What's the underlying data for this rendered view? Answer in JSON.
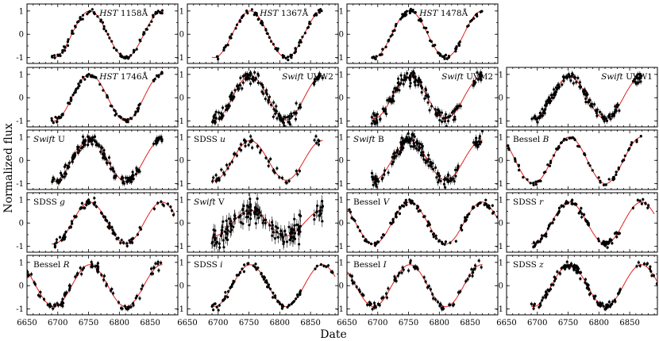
{
  "chart_data": {
    "type": "scatter",
    "xlabel": "Date",
    "ylabel": "Normalized flux",
    "xlim": [
      6650,
      6895
    ],
    "ylim": [
      -1.25,
      1.3
    ],
    "xticks": [
      6650,
      6700,
      6750,
      6800,
      6850
    ],
    "yticks": [
      -1,
      0,
      1
    ],
    "grid": false,
    "series_style": {
      "points": "black filled circles with error bars",
      "model": "red line"
    },
    "colors": {
      "points": "#000000",
      "model": "#e0201c"
    },
    "period_days": 117,
    "peak_date": 6752,
    "panels": [
      {
        "row": 0,
        "col": 0,
        "label_italic": "HST",
        "label_plain": " 1158Å",
        "x_start": 6690,
        "x_end": 6870,
        "noise": 0.06,
        "errorbar": 0.06,
        "n_points": 90,
        "offset_days": 0,
        "amplitude": 1.0
      },
      {
        "row": 0,
        "col": 1,
        "label_italic": "HST",
        "label_plain": " 1367Å",
        "x_start": 6690,
        "x_end": 6870,
        "noise": 0.06,
        "errorbar": 0.06,
        "n_points": 90,
        "offset_days": 0,
        "amplitude": 1.0
      },
      {
        "row": 0,
        "col": 2,
        "label_italic": "HST",
        "label_plain": " 1478Å",
        "x_start": 6690,
        "x_end": 6870,
        "noise": 0.06,
        "errorbar": 0.06,
        "n_points": 90,
        "offset_days": 0,
        "amplitude": 1.0
      },
      {
        "row": 1,
        "col": 0,
        "label_italic": "HST",
        "label_plain": " 1746Å",
        "x_start": 6690,
        "x_end": 6870,
        "noise": 0.06,
        "errorbar": 0.06,
        "n_points": 90,
        "offset_days": 0,
        "amplitude": 1.0
      },
      {
        "row": 1,
        "col": 1,
        "label_italic": "Swift",
        "label_plain": " UVW2",
        "x_start": 6690,
        "x_end": 6870,
        "noise": 0.12,
        "errorbar": 0.12,
        "n_points": 150,
        "offset_days": 0,
        "amplitude": 0.95
      },
      {
        "row": 1,
        "col": 2,
        "label_italic": "Swift",
        "label_plain": " UVM2",
        "x_start": 6690,
        "x_end": 6870,
        "noise": 0.14,
        "errorbar": 0.14,
        "n_points": 150,
        "offset_days": 0,
        "amplitude": 0.9
      },
      {
        "row": 1,
        "col": 3,
        "label_italic": "Swift",
        "label_plain": " UVW1",
        "x_start": 6690,
        "x_end": 6870,
        "noise": 0.12,
        "errorbar": 0.12,
        "n_points": 140,
        "offset_days": 0,
        "amplitude": 0.9
      },
      {
        "row": 2,
        "col": 0,
        "label_italic": "Swift",
        "label_plain": " U",
        "x_start": 6690,
        "x_end": 6870,
        "noise": 0.12,
        "errorbar": 0.12,
        "n_points": 150,
        "offset_days": 0,
        "amplitude": 0.9
      },
      {
        "row": 2,
        "col": 1,
        "label_italic": "",
        "label_plain": "SDSS u",
        "x_start": 6690,
        "x_end": 6870,
        "noise": 0.12,
        "errorbar": 0.1,
        "n_points": 60,
        "offset_days": 0,
        "amplitude": 0.85
      },
      {
        "row": 2,
        "col": 2,
        "label_italic": "Swift",
        "label_plain": " B",
        "x_start": 6690,
        "x_end": 6870,
        "noise": 0.15,
        "errorbar": 0.15,
        "n_points": 150,
        "offset_days": 0,
        "amplitude": 0.85
      },
      {
        "row": 2,
        "col": 3,
        "label_italic": "",
        "label_plain": "Bessel B",
        "x_start": 6650,
        "x_end": 6870,
        "noise": 0.06,
        "errorbar": 0.05,
        "n_points": 80,
        "offset_days": 0,
        "amplitude": 1.0
      },
      {
        "row": 3,
        "col": 0,
        "label_italic": "",
        "label_plain": "SDSS g",
        "x_start": 6690,
        "x_end": 6890,
        "noise": 0.08,
        "errorbar": 0.08,
        "n_points": 90,
        "offset_days": 0,
        "amplitude": 0.9
      },
      {
        "row": 3,
        "col": 1,
        "label_italic": "Swift",
        "label_plain": " V",
        "x_start": 6690,
        "x_end": 6870,
        "noise": 0.25,
        "errorbar": 0.25,
        "n_points": 150,
        "offset_days": 0,
        "amplitude": 0.55
      },
      {
        "row": 3,
        "col": 2,
        "label_italic": "",
        "label_plain": "Bessel V",
        "x_start": 6650,
        "x_end": 6895,
        "noise": 0.08,
        "errorbar": 0.07,
        "n_points": 110,
        "offset_days": 0,
        "amplitude": 0.9
      },
      {
        "row": 3,
        "col": 3,
        "label_italic": "",
        "label_plain": "SDSS r",
        "x_start": 6690,
        "x_end": 6890,
        "noise": 0.08,
        "errorbar": 0.08,
        "n_points": 90,
        "offset_days": 0,
        "amplitude": 0.9
      },
      {
        "row": 4,
        "col": 0,
        "label_italic": "",
        "label_plain": "Bessel R",
        "x_start": 6650,
        "x_end": 6870,
        "noise": 0.1,
        "errorbar": 0.1,
        "n_points": 90,
        "offset_days": 0,
        "amplitude": 0.9
      },
      {
        "row": 4,
        "col": 1,
        "label_italic": "",
        "label_plain": "SDSS i",
        "x_start": 6690,
        "x_end": 6890,
        "noise": 0.07,
        "errorbar": 0.07,
        "n_points": 90,
        "offset_days": 0,
        "amplitude": 0.9
      },
      {
        "row": 4,
        "col": 2,
        "label_italic": "",
        "label_plain": "Bessel I",
        "x_start": 6650,
        "x_end": 6870,
        "noise": 0.1,
        "errorbar": 0.1,
        "n_points": 80,
        "offset_days": 0,
        "amplitude": 0.9
      },
      {
        "row": 4,
        "col": 3,
        "label_italic": "",
        "label_plain": "SDSS z",
        "x_start": 6690,
        "x_end": 6895,
        "noise": 0.09,
        "errorbar": 0.09,
        "n_points": 120,
        "offset_days": 0,
        "amplitude": 0.9
      }
    ]
  }
}
